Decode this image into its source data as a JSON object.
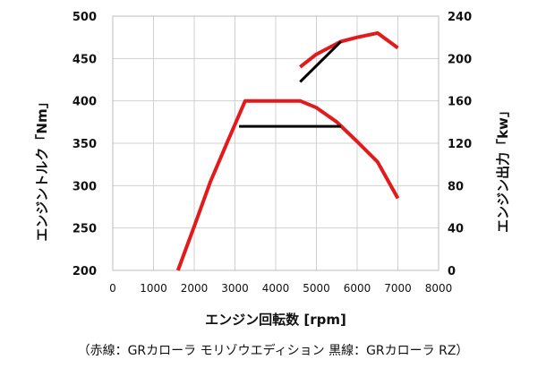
{
  "chart_data": {
    "type": "line",
    "xlabel": "エンジン回転数 [rpm]",
    "ylabel_left": "エンジントルク「Nm」",
    "ylabel_right": "エンジン出力「kw」",
    "caption": "（赤線：GRカローラ モリゾウエディション 黒線：GRカローラ RZ）",
    "xlim": [
      0,
      8000
    ],
    "ylim_left": [
      200,
      500
    ],
    "ylim_right": [
      0,
      240
    ],
    "x_ticks": [
      "0",
      "1000",
      "2000",
      "3000",
      "4000",
      "5000",
      "6000",
      "7000",
      "8000"
    ],
    "y_ticks_left": [
      "200",
      "250",
      "300",
      "350",
      "400",
      "450",
      "500"
    ],
    "y_ticks_right": [
      "0",
      "40",
      "80",
      "120",
      "160",
      "200",
      "240"
    ],
    "grid": true,
    "series": [
      {
        "color": "#e31a1c",
        "axis": "left",
        "points": [
          [
            1600,
            200
          ],
          [
            2000,
            252
          ],
          [
            2400,
            305
          ],
          [
            2800,
            350
          ],
          [
            3250,
            400
          ],
          [
            4600,
            400
          ],
          [
            5000,
            392
          ],
          [
            5500,
            375
          ],
          [
            6000,
            352
          ],
          [
            6500,
            328
          ],
          [
            7000,
            285
          ]
        ]
      },
      {
        "color": "#e31a1c",
        "axis": "right",
        "points": [
          [
            4600,
            192
          ],
          [
            5000,
            204
          ],
          [
            5600,
            216
          ],
          [
            6000,
            220
          ],
          [
            6500,
            224
          ],
          [
            7000,
            210
          ]
        ]
      },
      {
        "color": "#000000",
        "axis": "left",
        "points": [
          [
            3100,
            370
          ],
          [
            5600,
            370
          ]
        ]
      },
      {
        "color": "#000000",
        "axis": "right",
        "points": [
          [
            4600,
            178
          ],
          [
            5600,
            216
          ]
        ]
      }
    ]
  }
}
